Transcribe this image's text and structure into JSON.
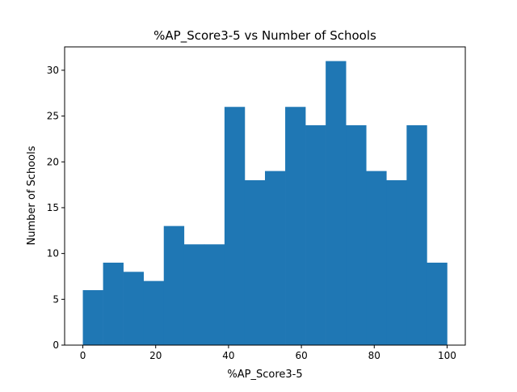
{
  "chart_data": {
    "type": "bar",
    "title": "%AP_Score3-5 vs Number of Schools",
    "xlabel": "%AP_Score3-5",
    "ylabel": "Number of Schools",
    "bin_edges": [
      0,
      5.556,
      11.111,
      16.667,
      22.222,
      27.778,
      33.333,
      38.889,
      44.444,
      50,
      55.556,
      61.111,
      66.667,
      72.222,
      77.778,
      83.333,
      88.889,
      94.444,
      100
    ],
    "values": [
      6,
      9,
      8,
      7,
      13,
      11,
      11,
      26,
      18,
      19,
      26,
      24,
      31,
      24,
      19,
      18,
      24,
      9
    ],
    "xlim": [
      -5,
      105
    ],
    "ylim": [
      0,
      32.55
    ],
    "xticks": [
      0,
      20,
      40,
      60,
      80,
      100
    ],
    "yticks": [
      0,
      5,
      10,
      15,
      20,
      25,
      30
    ],
    "grid": false,
    "color": "#1f77b4"
  }
}
